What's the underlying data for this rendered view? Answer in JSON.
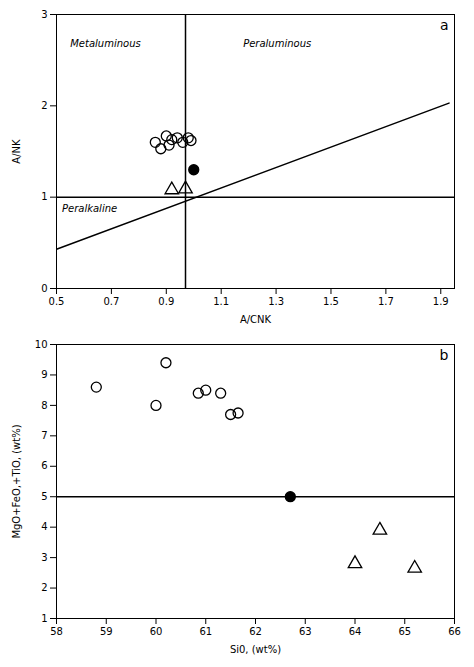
{
  "chart_data": [
    {
      "type": "scatter",
      "title": "a",
      "x_label": "A/CNK",
      "y_label": "A/NK",
      "xlim": [
        0.5,
        1.95
      ],
      "ylim": [
        0,
        3.0
      ],
      "xticks": [
        0.5,
        0.7,
        0.9,
        1.1,
        1.3,
        1.5,
        1.7,
        1.9
      ],
      "yticks": [
        0,
        1,
        2,
        3
      ],
      "vlines": [
        0.97
      ],
      "hlines": [
        1.0
      ],
      "lines_color": "#000000",
      "series": [
        {
          "type": "line",
          "color": "#000000",
          "x": [
            0.5,
            1.93
          ],
          "values": [
            0.43,
            2.03
          ]
        },
        {
          "marker": "open_circle",
          "color": "#000000",
          "x": [
            0.86,
            0.88,
            0.9,
            0.91,
            0.92,
            0.94,
            0.96,
            0.98,
            0.99
          ],
          "values": [
            1.6,
            1.53,
            1.67,
            1.57,
            1.63,
            1.65,
            1.6,
            1.65,
            1.62
          ]
        },
        {
          "marker": "filled_circle",
          "color": "#000000",
          "x": [
            1.0
          ],
          "values": [
            1.3
          ]
        },
        {
          "marker": "open_triangle",
          "color": "#000000",
          "x": [
            0.92,
            0.97
          ],
          "values": [
            1.08,
            1.09
          ]
        }
      ],
      "annotations": [
        {
          "text": "Metaluminous",
          "x": 0.55,
          "y": 2.72
        },
        {
          "text": "Peraluminous",
          "x": 1.18,
          "y": 2.72
        },
        {
          "text": "Peralkaline",
          "x": 0.52,
          "y": 0.92
        }
      ]
    },
    {
      "type": "scatter",
      "title": "b",
      "x_label": "Si0, (wt%)",
      "y_label": "MgO+FeO,+TiO, (wt%)",
      "xlim": [
        58,
        66
      ],
      "ylim": [
        1,
        10
      ],
      "xticks": [
        58,
        59,
        60,
        61,
        62,
        63,
        64,
        65,
        66
      ],
      "yticks": [
        1,
        2,
        3,
        4,
        5,
        6,
        7,
        8,
        9,
        10
      ],
      "hlines": [
        5.0
      ],
      "lines_color": "#000000",
      "series": [
        {
          "marker": "open_circle",
          "color": "#000000",
          "x": [
            58.8,
            60.0,
            60.2,
            60.85,
            61.0,
            61.3,
            61.5,
            61.65
          ],
          "values": [
            8.6,
            8.0,
            9.4,
            8.4,
            8.5,
            8.4,
            7.7,
            7.75
          ]
        },
        {
          "marker": "filled_circle",
          "color": "#000000",
          "x": [
            62.7
          ],
          "values": [
            5.0
          ]
        },
        {
          "marker": "open_triangle",
          "color": "#000000",
          "x": [
            64.0,
            64.5,
            65.2
          ],
          "values": [
            2.8,
            3.9,
            2.65
          ]
        }
      ]
    }
  ]
}
